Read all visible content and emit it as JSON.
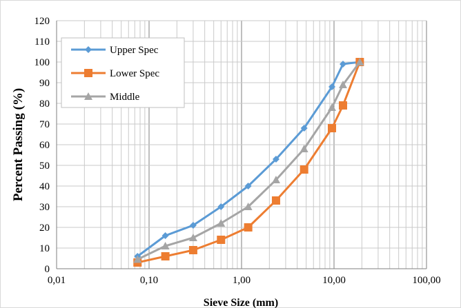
{
  "chart_data": {
    "type": "line",
    "xscale": "log",
    "xlim": [
      0.01,
      100
    ],
    "ylim": [
      0,
      120
    ],
    "grid": true,
    "legend_position": "top-left",
    "xlabel": "Sieve Size (mm)",
    "ylabel": "Percent Passing (%)",
    "x_tick_labels": [
      "0,01",
      "0,10",
      "1,00",
      "10,00",
      "100,00"
    ],
    "y_tick_labels": [
      "0",
      "10",
      "20",
      "30",
      "40",
      "50",
      "60",
      "70",
      "80",
      "90",
      "100",
      "110",
      "120"
    ],
    "series": [
      {
        "name": "Upper Spec",
        "color": "#5b9bd5",
        "marker": "diamond",
        "x": [
          0.075,
          0.15,
          0.3,
          0.6,
          1.18,
          2.36,
          4.75,
          9.5,
          12.5,
          19
        ],
        "y": [
          6,
          16,
          21,
          30,
          40,
          53,
          68,
          88,
          99,
          100
        ]
      },
      {
        "name": "Lower Spec",
        "color": "#ed7d31",
        "marker": "square",
        "x": [
          0.075,
          0.15,
          0.3,
          0.6,
          1.18,
          2.36,
          4.75,
          9.5,
          12.5,
          19
        ],
        "y": [
          3,
          6,
          9,
          14,
          20,
          33,
          48,
          68,
          79,
          100
        ]
      },
      {
        "name": "Middle",
        "color": "#a5a5a5",
        "marker": "triangle",
        "x": [
          0.075,
          0.15,
          0.3,
          0.6,
          1.18,
          2.36,
          4.75,
          9.5,
          12.5,
          19
        ],
        "y": [
          4.5,
          11,
          15,
          22,
          30,
          43,
          58,
          78,
          89,
          100
        ]
      }
    ]
  }
}
